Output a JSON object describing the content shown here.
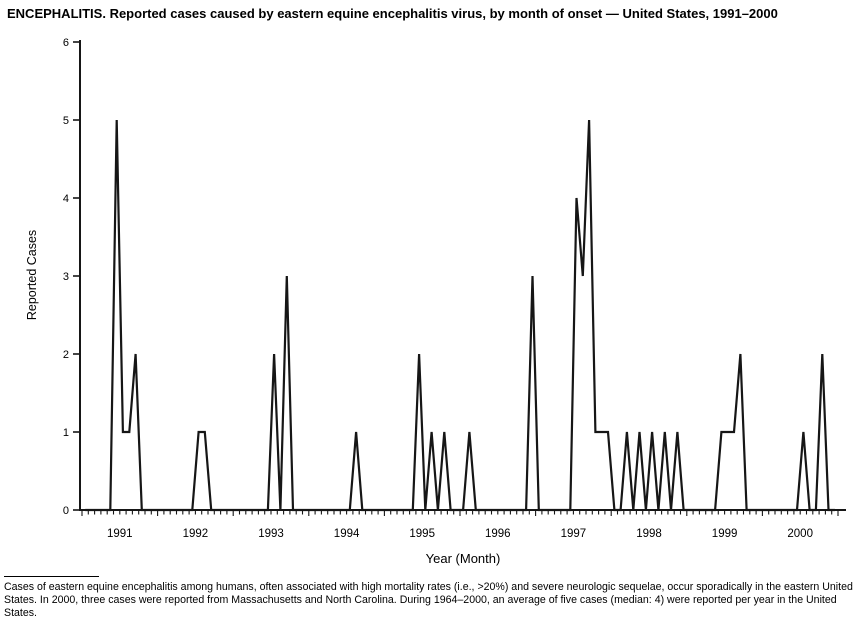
{
  "chart_data": {
    "type": "line",
    "title": "ENCEPHALITIS. Reported cases caused by eastern equine encephalitis virus, by month of onset — United States, 1991–2000",
    "xlabel": "Year (Month)",
    "ylabel": "Reported Cases",
    "ylim": [
      0,
      6
    ],
    "yticks": [
      0,
      1,
      2,
      3,
      4,
      5,
      6
    ],
    "x_unit": "month",
    "grid": "off",
    "legend": "none",
    "years": [
      "1991",
      "1992",
      "1993",
      "1994",
      "1995",
      "1996",
      "1997",
      "1998",
      "1999",
      "2000"
    ],
    "series": [
      {
        "name": "Reported cases",
        "values_by_year": [
          [
            0,
            0,
            0,
            0,
            0,
            5,
            1,
            1,
            2,
            0,
            0,
            0
          ],
          [
            0,
            0,
            0,
            0,
            0,
            0,
            1,
            1,
            0,
            0,
            0,
            0
          ],
          [
            0,
            0,
            0,
            0,
            0,
            0,
            2,
            0,
            3,
            0,
            0,
            0
          ],
          [
            0,
            0,
            0,
            0,
            0,
            0,
            0,
            1,
            0,
            0,
            0,
            0
          ],
          [
            0,
            0,
            0,
            0,
            0,
            2,
            0,
            1,
            0,
            1,
            0,
            0
          ],
          [
            0,
            1,
            0,
            0,
            0,
            0,
            0,
            0,
            0,
            0,
            0,
            3
          ],
          [
            0,
            0,
            0,
            0,
            0,
            0,
            4,
            3,
            5,
            1,
            1,
            1
          ],
          [
            0,
            0,
            1,
            0,
            1,
            0,
            1,
            0,
            1,
            0,
            1,
            0
          ],
          [
            0,
            0,
            0,
            0,
            0,
            1,
            1,
            1,
            2,
            0,
            0,
            0
          ],
          [
            0,
            0,
            0,
            0,
            0,
            0,
            1,
            0,
            0,
            2,
            0,
            0
          ]
        ]
      }
    ]
  },
  "footnote": "Cases of eastern equine encephalitis among humans, often associated with high mortality rates (i.e., >20%) and severe neurologic sequelae, occur sporadically in the eastern United States. In 2000, three cases were reported from Massachusetts and North Carolina. During 1964–2000, an average of five cases (median: 4) were reported per year in the United States.",
  "colors": {
    "line": "#161616",
    "axis": "#161616",
    "text": "#000000",
    "background": "#ffffff"
  }
}
